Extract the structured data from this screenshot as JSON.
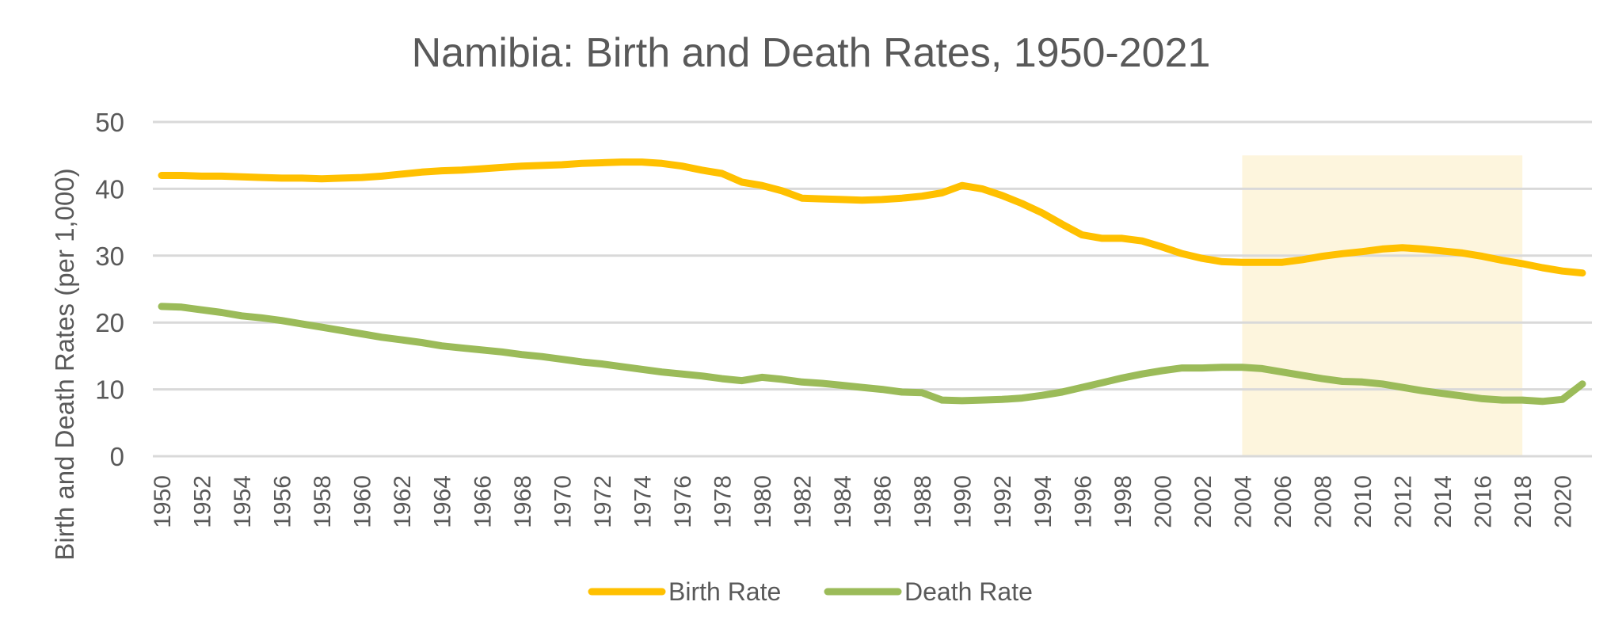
{
  "chart_data": {
    "type": "line",
    "title": "Namibia: Birth and Death Rates, 1950-2021",
    "xlabel": "",
    "ylabel": "Birth and Death Rates (per 1,000)",
    "ylim": [
      0,
      50
    ],
    "yticks": [
      0,
      10,
      20,
      30,
      40,
      50
    ],
    "grid": true,
    "legend_position": "bottom",
    "x": [
      1950,
      1951,
      1952,
      1953,
      1954,
      1955,
      1956,
      1957,
      1958,
      1959,
      1960,
      1961,
      1962,
      1963,
      1964,
      1965,
      1966,
      1967,
      1968,
      1969,
      1970,
      1971,
      1972,
      1973,
      1974,
      1975,
      1976,
      1977,
      1978,
      1979,
      1980,
      1981,
      1982,
      1983,
      1984,
      1985,
      1986,
      1987,
      1988,
      1989,
      1990,
      1991,
      1992,
      1993,
      1994,
      1995,
      1996,
      1997,
      1998,
      1999,
      2000,
      2001,
      2002,
      2003,
      2004,
      2005,
      2006,
      2007,
      2008,
      2009,
      2010,
      2011,
      2012,
      2013,
      2014,
      2015,
      2016,
      2017,
      2018,
      2019,
      2020,
      2021
    ],
    "xtick_labels": [
      "1950",
      "1952",
      "1954",
      "1956",
      "1958",
      "1960",
      "1962",
      "1964",
      "1966",
      "1968",
      "1970",
      "1972",
      "1974",
      "1976",
      "1978",
      "1980",
      "1982",
      "1984",
      "1986",
      "1988",
      "1990",
      "1992",
      "1994",
      "1996",
      "1998",
      "2000",
      "2002",
      "2004",
      "2006",
      "2008",
      "2010",
      "2012",
      "2014",
      "2016",
      "2018",
      "2020"
    ],
    "series": [
      {
        "name": "Birth Rate",
        "color": "#FFC000",
        "values": [
          42.0,
          42.0,
          41.9,
          41.9,
          41.8,
          41.7,
          41.6,
          41.6,
          41.5,
          41.6,
          41.7,
          41.9,
          42.2,
          42.5,
          42.7,
          42.8,
          43.0,
          43.2,
          43.4,
          43.5,
          43.6,
          43.8,
          43.9,
          44.0,
          44.0,
          43.8,
          43.4,
          42.8,
          42.3,
          41.0,
          40.5,
          39.7,
          38.6,
          38.5,
          38.4,
          38.3,
          38.4,
          38.6,
          38.9,
          39.4,
          40.5,
          40.0,
          39.0,
          37.8,
          36.4,
          34.7,
          33.1,
          32.6,
          32.6,
          32.2,
          31.3,
          30.3,
          29.6,
          29.1,
          29.0,
          29.0,
          29.0,
          29.4,
          29.9,
          30.3,
          30.6,
          31.0,
          31.2,
          31.0,
          30.7,
          30.4,
          29.9,
          29.3,
          28.8,
          28.2,
          27.7,
          27.4
        ]
      },
      {
        "name": "Death Rate",
        "color": "#9BBB59",
        "values": [
          22.4,
          22.3,
          21.9,
          21.5,
          21.0,
          20.7,
          20.3,
          19.8,
          19.3,
          18.8,
          18.3,
          17.8,
          17.4,
          17.0,
          16.5,
          16.2,
          15.9,
          15.6,
          15.2,
          14.9,
          14.5,
          14.1,
          13.8,
          13.4,
          13.0,
          12.6,
          12.3,
          12.0,
          11.6,
          11.3,
          11.8,
          11.5,
          11.1,
          10.9,
          10.6,
          10.3,
          10.0,
          9.6,
          9.5,
          8.4,
          8.3,
          8.4,
          8.5,
          8.7,
          9.1,
          9.6,
          10.3,
          11.0,
          11.7,
          12.3,
          12.8,
          13.2,
          13.2,
          13.3,
          13.3,
          13.1,
          12.6,
          12.1,
          11.6,
          11.2,
          11.1,
          10.8,
          10.3,
          9.8,
          9.4,
          9.0,
          8.6,
          8.4,
          8.4,
          8.2,
          8.5,
          10.8
        ]
      }
    ],
    "highlight_band": {
      "x_start": 2004,
      "x_end": 2018,
      "y_top": 45,
      "color": "#FDF5DD"
    },
    "gridline_color": "#D9D9D9"
  }
}
